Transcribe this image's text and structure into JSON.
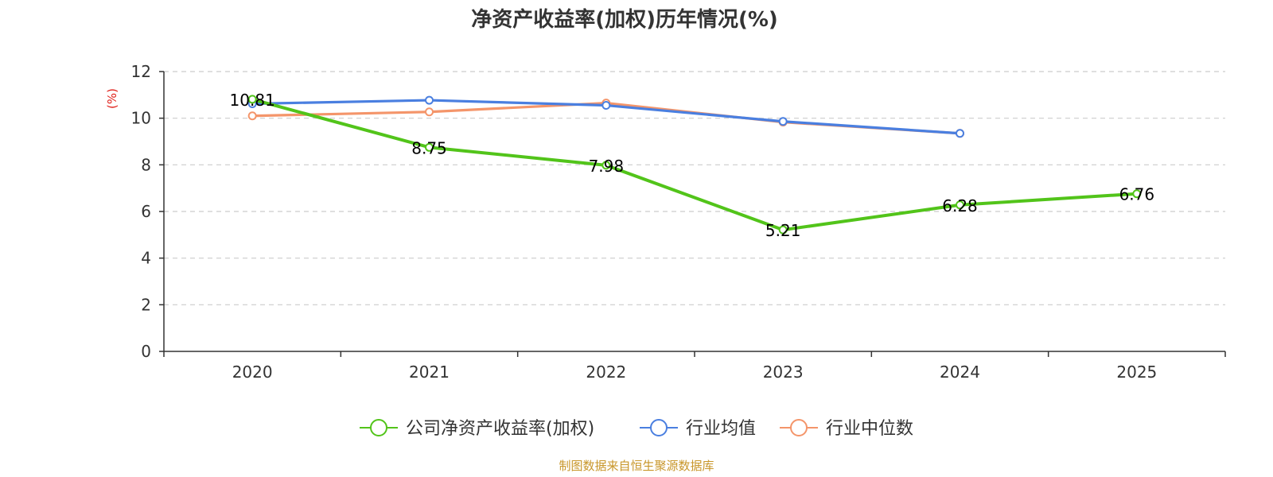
{
  "chart_data": {
    "type": "line",
    "title": "净资产收益率(加权)历年情况(%)",
    "ylabel": "(%)",
    "xlabel": "",
    "categories": [
      "2020",
      "2021",
      "2022",
      "2023",
      "2024",
      "2025"
    ],
    "ylim": [
      0,
      12
    ],
    "yticks": [
      0,
      2,
      4,
      6,
      8,
      10,
      12
    ],
    "grid": true,
    "legend_position": "bottom-center",
    "series": [
      {
        "name": "公司净资产收益率(加权)",
        "color": "#52c41a",
        "values": [
          10.81,
          8.75,
          7.98,
          5.21,
          6.28,
          6.76
        ],
        "data_labels": [
          "10.81",
          "8.75",
          "7.98",
          "5.21",
          "6.28",
          "6.76"
        ]
      },
      {
        "name": "行业均值",
        "color": "#4a7fe0",
        "values": [
          10.62,
          10.77,
          10.55,
          9.86,
          9.35,
          null
        ]
      },
      {
        "name": "行业中位数",
        "color": "#f4956a",
        "values": [
          10.1,
          10.27,
          10.65,
          9.83,
          9.35,
          null
        ]
      }
    ]
  },
  "source": "制图数据来自恒生聚源数据库",
  "colors": {
    "axis": "#333333",
    "grid": "#cccccc",
    "unit": "#e0201a",
    "source": "#c8962a"
  }
}
